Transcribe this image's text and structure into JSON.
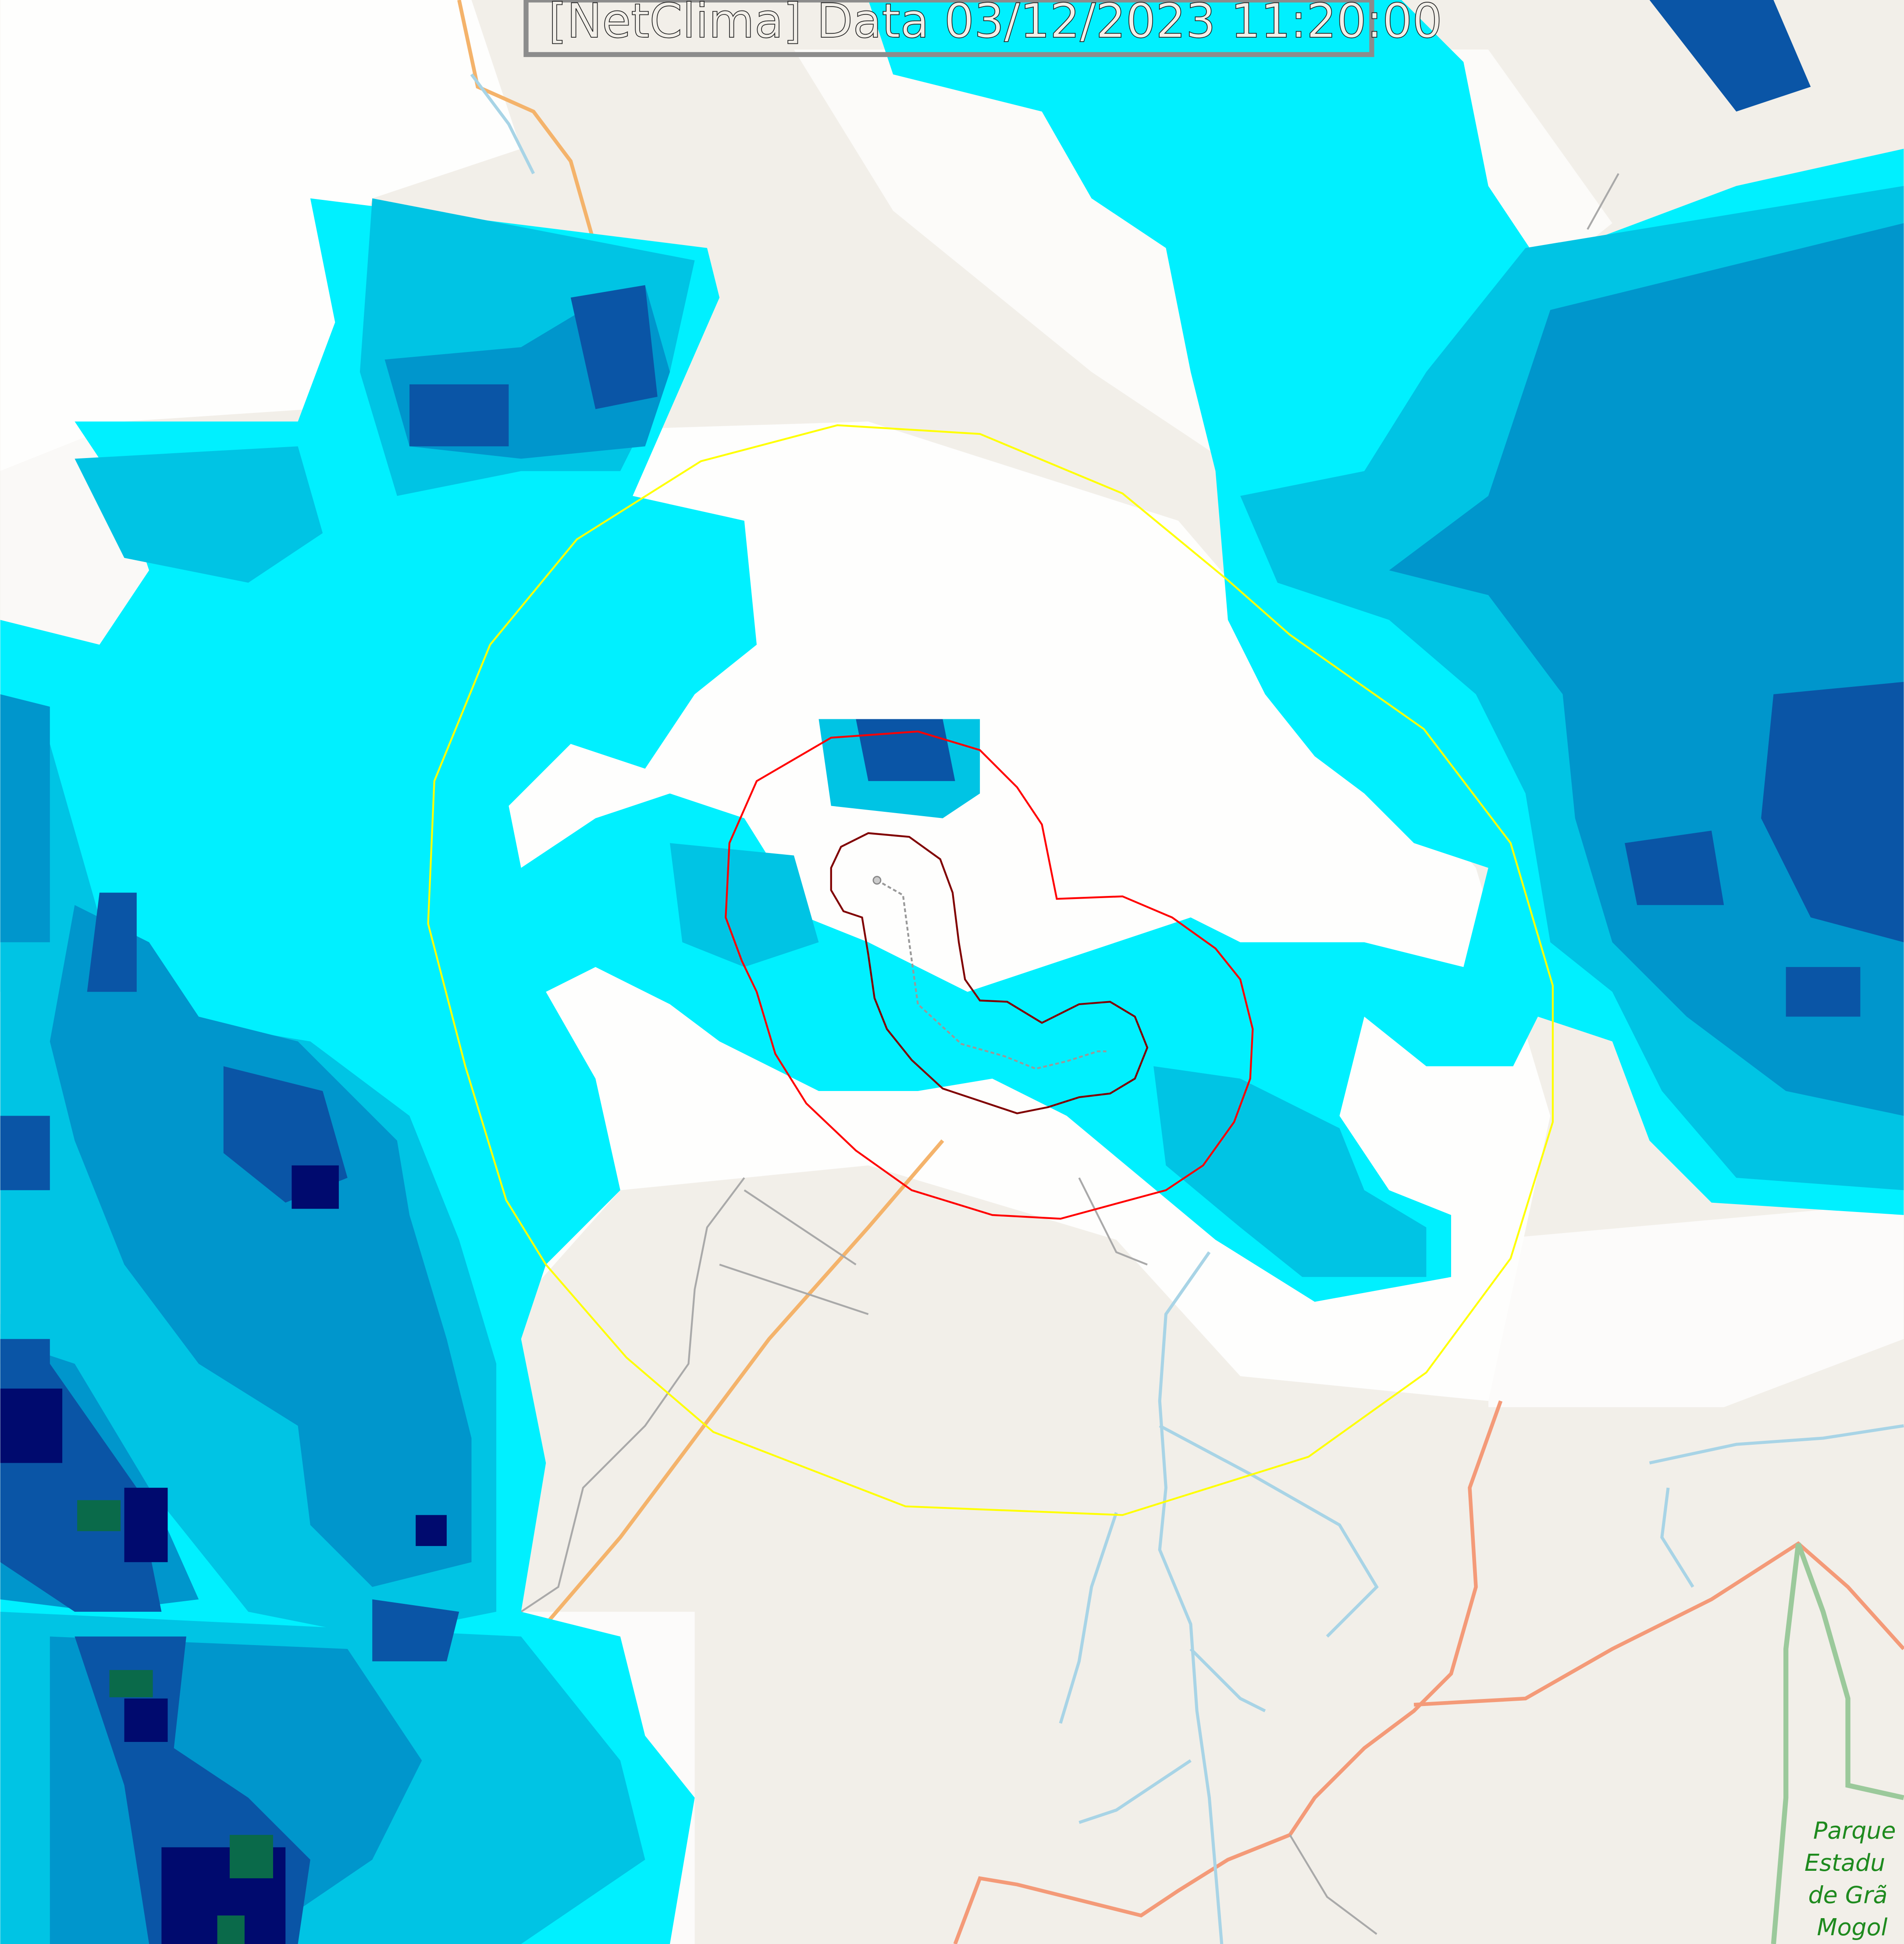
{
  "header": {
    "title": "[NetClima] Data 03/12/2023 11:20:00"
  },
  "map_labels": {
    "park": [
      "Parque",
      "Estadu",
      "de Grã",
      "Mogol"
    ]
  },
  "colors": {
    "land": "#f2efe9",
    "haze": "#ffffff",
    "radar_light": "#00f5ff",
    "radar_mid": "#00c8e6",
    "radar_strong": "#0096cc",
    "radar_heavy": "#0a5aa8",
    "radar_extreme": "#000a6e",
    "outer_ring": "#ffff00",
    "inner_ring": "#ff0000",
    "track_outline": "#800000",
    "road": "#f4b36b",
    "river": "#a8d4e6",
    "park_border": "#9bc99b"
  }
}
